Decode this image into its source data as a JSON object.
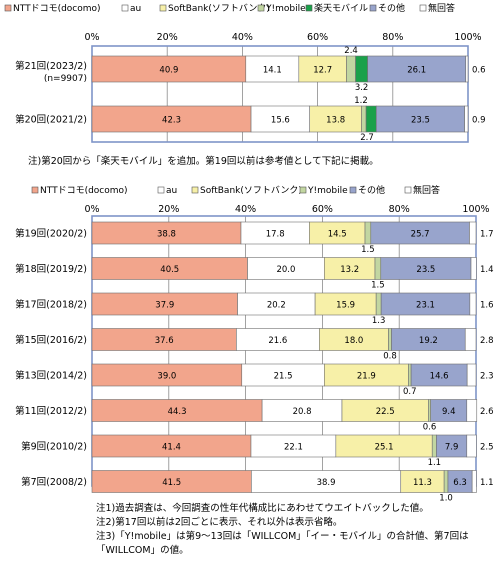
{
  "colors": {
    "docomo": "#f2a58c",
    "au": "#ffffff",
    "softbank": "#f7f0a8",
    "ymobile": "#c2d6a1",
    "rakuten": "#1aa14a",
    "other": "#98a4cc",
    "noanswer": "#ffffff",
    "frame": "#7f94c8"
  },
  "chart_data": [
    {
      "type": "bar",
      "legend": [
        "NTTドコモ(docomo)",
        "au",
        "SoftBank(ソフトバンク)",
        "Y!mobile",
        "楽天モバイル",
        "その他",
        "無回答"
      ],
      "axis_ticks": [
        "0%",
        "20%",
        "40%",
        "60%",
        "80%",
        "100%"
      ],
      "xlim": [
        0,
        100
      ],
      "rows": [
        {
          "label": "第21回(2023/2)",
          "sublabel": "(n=9907)",
          "values": [
            40.9,
            14.1,
            12.7,
            2.4,
            3.2,
            26.1,
            0.6
          ],
          "labels": [
            "40.9",
            "14.1",
            "12.7",
            "2.4",
            "3.2",
            "26.1",
            "0.6"
          ]
        },
        {
          "label": "第20回(2021/2)",
          "values": [
            42.3,
            15.6,
            13.8,
            1.2,
            2.7,
            23.5,
            0.9
          ],
          "labels": [
            "42.3",
            "15.6",
            "13.8",
            "1.2",
            "2.7",
            "23.5",
            "0.9"
          ]
        }
      ]
    },
    {
      "type": "bar",
      "legend": [
        "NTTドコモ(docomo)",
        "au",
        "SoftBank(ソフトバンク)",
        "Y!mobile",
        "その他",
        "無回答"
      ],
      "axis_ticks": [
        "0%",
        "20%",
        "40%",
        "60%",
        "80%",
        "100%"
      ],
      "xlim": [
        0,
        100
      ],
      "rows": [
        {
          "label": "第19回(2020/2)",
          "values": [
            38.8,
            17.8,
            14.5,
            1.5,
            25.7,
            1.7
          ],
          "labels": [
            "38.8",
            "17.8",
            "14.5",
            "1.5",
            "25.7",
            "1.7"
          ]
        },
        {
          "label": "第18回(2019/2)",
          "values": [
            40.5,
            20.0,
            13.2,
            1.5,
            23.5,
            1.4
          ],
          "labels": [
            "40.5",
            "20.0",
            "13.2",
            "1.5",
            "23.5",
            "1.4"
          ]
        },
        {
          "label": "第17回(2018/2)",
          "values": [
            37.9,
            20.2,
            15.9,
            1.3,
            23.1,
            1.6
          ],
          "labels": [
            "37.9",
            "20.2",
            "15.9",
            "1.3",
            "23.1",
            "1.6"
          ]
        },
        {
          "label": "第15回(2016/2)",
          "values": [
            37.6,
            21.6,
            18.0,
            0.8,
            19.2,
            2.8
          ],
          "labels": [
            "37.6",
            "21.6",
            "18.0",
            "0.8",
            "19.2",
            "2.8"
          ]
        },
        {
          "label": "第13回(2014/2)",
          "values": [
            39.0,
            21.5,
            21.9,
            0.7,
            14.6,
            2.3
          ],
          "labels": [
            "39.0",
            "21.5",
            "21.9",
            "0.7",
            "14.6",
            "2.3"
          ]
        },
        {
          "label": "第11回(2012/2)",
          "values": [
            44.3,
            20.8,
            22.5,
            0.6,
            9.4,
            2.6
          ],
          "labels": [
            "44.3",
            "20.8",
            "22.5",
            "0.6",
            "9.4",
            "2.6"
          ]
        },
        {
          "label": "第9回(2010/2)",
          "values": [
            41.4,
            22.1,
            25.1,
            1.1,
            7.9,
            2.5
          ],
          "labels": [
            "41.4",
            "22.1",
            "25.1",
            "1.1",
            "7.9",
            "2.5"
          ]
        },
        {
          "label": "第7回(2008/2)",
          "values": [
            41.5,
            38.9,
            11.3,
            1.0,
            6.3,
            1.1
          ],
          "labels": [
            "41.5",
            "38.9",
            "11.3",
            "1.0",
            "6.3",
            "1.1"
          ]
        }
      ]
    }
  ],
  "notes": {
    "middle": "注)第20回から「楽天モバイル」を追加。第19回以前は参考値として下記に掲載。",
    "foot1": "注1)過去調査は、今回調査の性年代構成比にあわせてウエイトバックした値。",
    "foot2": "注2)第17回以前は2回ごとに表示、それ以外は表示省略。",
    "foot3a": "注3)「Y!mobile」は第9～13回は「WILLCOM」「イー・モバイル」の合計値、第7回は",
    "foot3b": "「WILLCOM」の値。"
  }
}
